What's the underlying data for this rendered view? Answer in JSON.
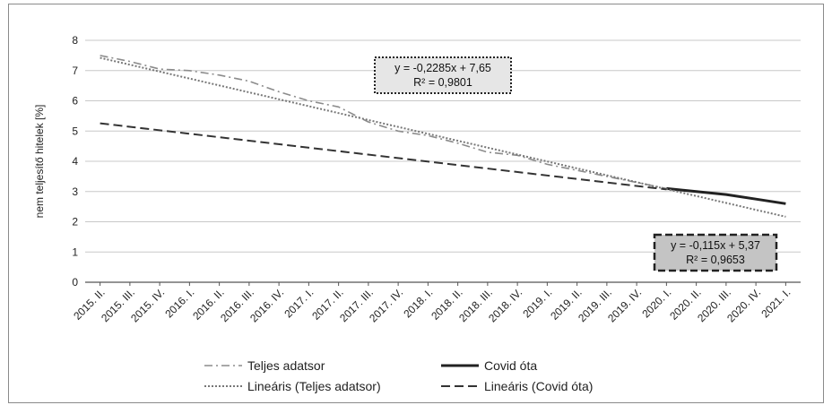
{
  "chart_data": {
    "type": "line",
    "ylabel": "nem teljesítő hitelek [%]",
    "xlabel": "",
    "ylim": [
      0,
      8
    ],
    "yticks": [
      0,
      1,
      2,
      3,
      4,
      5,
      6,
      7,
      8
    ],
    "grid": true,
    "categories": [
      "2015. II.",
      "2015. III.",
      "2015. IV.",
      "2016. I.",
      "2016. II.",
      "2016. III.",
      "2016. IV.",
      "2017. I.",
      "2017. II.",
      "2017. III.",
      "2017. IV.",
      "2018. I.",
      "2018. II.",
      "2018. III.",
      "2018. IV.",
      "2019. I.",
      "2019. II.",
      "2019. III.",
      "2019. IV.",
      "2020. I.",
      "2020. II.",
      "2020. III.",
      "2020. IV.",
      "2021. I."
    ],
    "series": [
      {
        "name": "Teljes adatsor",
        "style": "dashdot",
        "color": "#8c8c8c",
        "values": [
          7.5,
          7.3,
          7.05,
          7.0,
          6.85,
          6.65,
          6.3,
          6.0,
          5.8,
          5.3,
          5.0,
          4.85,
          4.6,
          4.3,
          4.2,
          3.9,
          3.7,
          3.5,
          3.3,
          3.1,
          null,
          null,
          null,
          null
        ]
      },
      {
        "name": "Covid óta",
        "style": "solid",
        "color": "#222222",
        "values": [
          null,
          null,
          null,
          null,
          null,
          null,
          null,
          null,
          null,
          null,
          null,
          null,
          null,
          null,
          null,
          null,
          null,
          null,
          null,
          3.1,
          3.0,
          2.9,
          2.75,
          2.6
        ]
      },
      {
        "name": "Lineáris (Teljes adatsor)",
        "style": "dotted",
        "color": "#777777",
        "trend": {
          "slope": -0.2285,
          "intercept": 7.65,
          "from": 1,
          "to": 24
        }
      },
      {
        "name": "Lineáris (Covid óta)",
        "style": "dashed",
        "color": "#333333",
        "trend": {
          "slope": -0.115,
          "intercept": 5.37,
          "from": 1,
          "to": 20
        }
      }
    ],
    "annotations": [
      {
        "line1": "y = -0,2285x + 7,65",
        "line2": "R² = 0,9801",
        "style": "dotted",
        "fill": "#e6e6e6"
      },
      {
        "line1": "y = -0,115x + 5,37",
        "line2": "R² = 0,9653",
        "style": "dashed",
        "fill": "#c4c4c4"
      }
    ],
    "legend": {
      "placement": "bottom",
      "items": [
        {
          "label": "Teljes adatsor",
          "style": "dashdot",
          "color": "#8c8c8c"
        },
        {
          "label": "Covid óta",
          "style": "solid",
          "color": "#222222"
        },
        {
          "label": "Lineáris (Teljes adatsor)",
          "style": "dotted",
          "color": "#777777"
        },
        {
          "label": "Lineáris (Covid óta)",
          "style": "dashed",
          "color": "#333333"
        }
      ]
    }
  }
}
